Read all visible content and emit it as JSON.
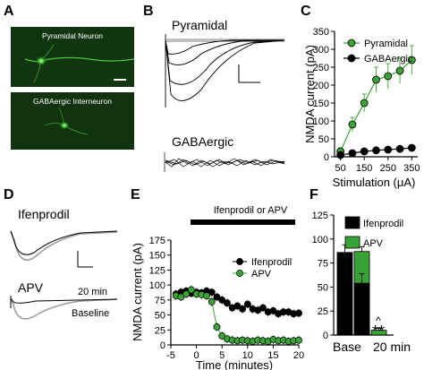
{
  "panels": {
    "A": {
      "label": "A",
      "top_caption": "Pyramidal Neuron",
      "bottom_caption": "GABAergic Interneuron"
    },
    "B": {
      "label": "B",
      "top_title": "Pyramidal",
      "bottom_title": "GABAergic"
    },
    "C": {
      "label": "C"
    },
    "D": {
      "label": "D",
      "top_title": "Ifenprodil",
      "bottom_title": "APV",
      "legend_20min": "20 min",
      "legend_baseline": "Baseline"
    },
    "E": {
      "label": "E",
      "bar_label": "Ifenprodil or APV"
    },
    "F": {
      "label": "F",
      "stars_ifen": "**",
      "stars_apv": "**",
      "caret": "^"
    }
  },
  "colors": {
    "green": "#3aa335",
    "black": "#000000",
    "gray": "#9a9a9a",
    "micro_green": "#3fbf3a"
  },
  "chart_data": [
    {
      "id": "C",
      "type": "line",
      "xlabel": "Stimulation (μA)",
      "ylabel": "NMDA current (pA)",
      "xlim": [
        25,
        375
      ],
      "ylim": [
        0,
        350
      ],
      "xticks": [
        50,
        150,
        250,
        350
      ],
      "yticks": [
        0,
        50,
        100,
        150,
        200,
        250,
        300,
        350
      ],
      "legend": "top-left",
      "series": [
        {
          "name": "Pyramidal",
          "color": "#3aa335",
          "x": [
            50,
            100,
            150,
            200,
            250,
            300,
            350
          ],
          "y": [
            15,
            90,
            150,
            215,
            225,
            240,
            270
          ],
          "err": [
            10,
            20,
            25,
            35,
            35,
            35,
            40
          ]
        },
        {
          "name": "GABAergic",
          "color": "#000000",
          "x": [
            50,
            100,
            150,
            200,
            250,
            300,
            350
          ],
          "y": [
            5,
            10,
            15,
            18,
            20,
            22,
            25
          ],
          "err": [
            3,
            3,
            4,
            4,
            4,
            4,
            4
          ]
        }
      ]
    },
    {
      "id": "E",
      "type": "scatter",
      "xlabel": "Time (minutes)",
      "ylabel": "NMDA current (pA)",
      "xlim": [
        -5,
        20
      ],
      "ylim": [
        0,
        175
      ],
      "xticks": [
        -5,
        0,
        5,
        10,
        15,
        20
      ],
      "yticks": [
        0,
        25,
        50,
        75,
        100,
        125,
        150,
        175
      ],
      "legend": "top-right",
      "series": [
        {
          "name": "Ifenprodil",
          "color": "#000000",
          "x": [
            -4,
            -3,
            -2,
            -1,
            0,
            1,
            2,
            3,
            4,
            5,
            6,
            7,
            8,
            9,
            10,
            11,
            12,
            13,
            14,
            15,
            16,
            17,
            18,
            19,
            20
          ],
          "y": [
            85,
            88,
            90,
            86,
            88,
            87,
            90,
            88,
            80,
            75,
            70,
            62,
            65,
            60,
            68,
            60,
            58,
            62,
            55,
            57,
            52,
            55,
            55,
            52,
            53
          ]
        },
        {
          "name": "APV",
          "color": "#3aa335",
          "x": [
            -4,
            -3,
            -2,
            -1,
            0,
            1,
            2,
            3,
            4,
            5,
            6,
            7,
            8,
            9,
            10,
            11,
            12,
            13,
            14,
            15,
            16,
            17,
            18,
            19,
            20
          ],
          "y": [
            82,
            80,
            85,
            92,
            85,
            84,
            82,
            72,
            30,
            15,
            10,
            8,
            7,
            8,
            7,
            6,
            8,
            7,
            6,
            9,
            7,
            8,
            6,
            7,
            8
          ]
        }
      ]
    },
    {
      "id": "F",
      "type": "bar",
      "ylim": [
        0,
        125
      ],
      "yticks": [
        0,
        25,
        50,
        75,
        100,
        125
      ],
      "categories": [
        "Base",
        "20 min"
      ],
      "legend": "top-right",
      "series": [
        {
          "name": "Ifenprodil",
          "color": "#000000",
          "values": [
            86,
            54
          ],
          "err": [
            8,
            10
          ]
        },
        {
          "name": "APV",
          "color": "#3aa335",
          "values": [
            87,
            5
          ],
          "err": [
            5,
            2
          ]
        }
      ]
    }
  ]
}
